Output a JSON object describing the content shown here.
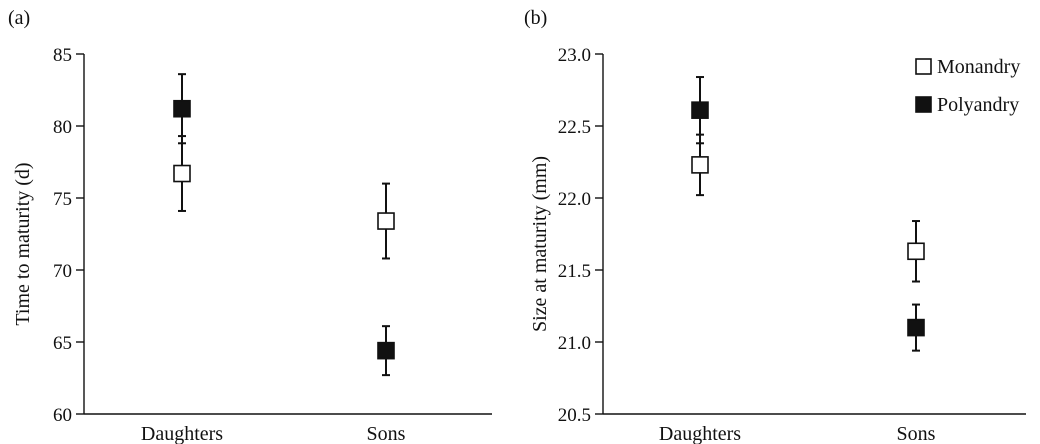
{
  "chart_data": [
    {
      "type": "scatter",
      "panel_label": "(a)",
      "title": "",
      "xlabel": "",
      "ylabel": "Time to maturity (d)",
      "categories": [
        "Daughters",
        "Sons"
      ],
      "ylim": [
        60,
        85
      ],
      "yticks": [
        "60",
        "65",
        "70",
        "75",
        "80",
        "85"
      ],
      "error_bars": true,
      "grid": false,
      "series": [
        {
          "name": "Monandry",
          "marker": "open-square",
          "values": [
            76.7,
            73.4
          ],
          "errors": [
            2.6,
            2.6
          ]
        },
        {
          "name": "Polyandry",
          "marker": "filled-square",
          "values": [
            81.2,
            64.4
          ],
          "errors": [
            2.4,
            1.7
          ]
        }
      ]
    },
    {
      "type": "scatter",
      "panel_label": "(b)",
      "title": "",
      "xlabel": "",
      "ylabel": "Size at maturity (mm)",
      "categories": [
        "Daughters",
        "Sons"
      ],
      "ylim": [
        20.5,
        23.0
      ],
      "yticks": [
        "20.5",
        "21.0",
        "21.5",
        "22.0",
        "22.5",
        "23.0"
      ],
      "error_bars": true,
      "grid": false,
      "legend": {
        "position": "top-right",
        "entries": [
          "Monandry",
          "Polyandry"
        ]
      },
      "series": [
        {
          "name": "Monandry",
          "marker": "open-square",
          "values": [
            22.23,
            21.63
          ],
          "errors": [
            0.21,
            0.21
          ]
        },
        {
          "name": "Polyandry",
          "marker": "filled-square",
          "values": [
            22.61,
            21.1
          ],
          "errors": [
            0.23,
            0.16
          ]
        }
      ]
    }
  ],
  "colors": {
    "axis": "#111111",
    "open_fill": "#ffffff",
    "filled_fill": "#111111"
  }
}
